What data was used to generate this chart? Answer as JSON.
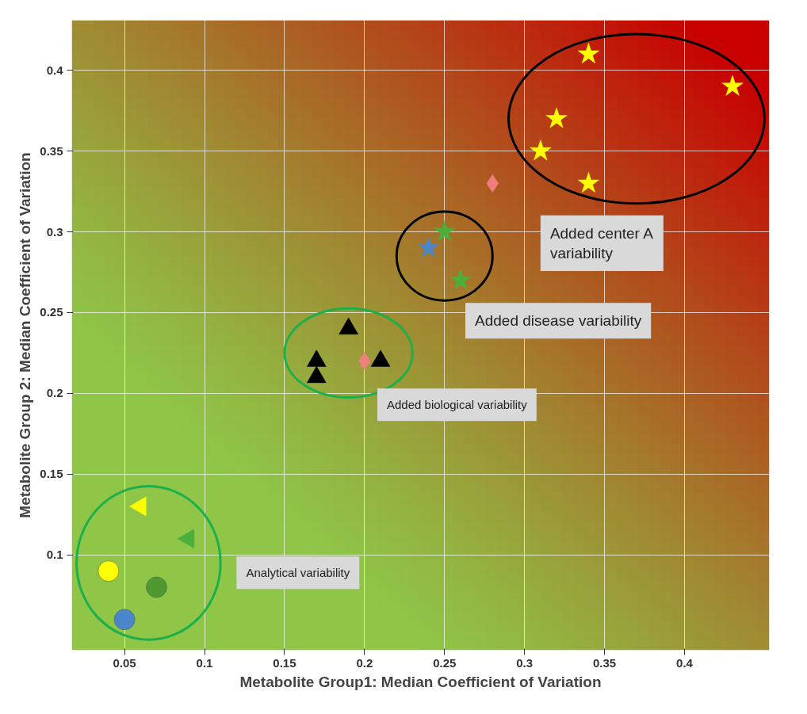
{
  "chart_data": {
    "type": "scatter",
    "xlabel": "Metabolite Group1: Median Coefficient of Variation",
    "ylabel": "Metabolite Group 2: Median Coefficient of Variation",
    "xlim": [
      0.017,
      0.453
    ],
    "ylim": [
      0.041,
      0.431
    ],
    "xticks": [
      0.05,
      0.1,
      0.15,
      0.2,
      0.25,
      0.3,
      0.35,
      0.4
    ],
    "yticks": [
      0.1,
      0.15,
      0.2,
      0.25,
      0.3,
      0.35,
      0.4
    ],
    "grid": true,
    "series": [
      {
        "color": "#ffff00",
        "marker": "star",
        "x": [
          0.34,
          0.43,
          0.32,
          0.31,
          0.34
        ],
        "values": [
          0.41,
          0.39,
          0.37,
          0.35,
          0.33
        ]
      },
      {
        "color": "#f08080",
        "marker": "diamond",
        "x": [
          0.28,
          0.2
        ],
        "values": [
          0.33,
          0.22
        ]
      },
      {
        "color": "#4caf3a",
        "marker": "star",
        "x": [
          0.25,
          0.26
        ],
        "values": [
          0.3,
          0.27
        ]
      },
      {
        "color": "#4a86c8",
        "marker": "star",
        "x": [
          0.24
        ],
        "values": [
          0.29
        ]
      },
      {
        "color": "#000000",
        "marker": "triangle",
        "x": [
          0.19,
          0.17,
          0.17,
          0.21
        ],
        "values": [
          0.24,
          0.22,
          0.21,
          0.22
        ]
      },
      {
        "color": "#ffff00",
        "marker": "triangle-left",
        "x": [
          0.06
        ],
        "values": [
          0.13
        ]
      },
      {
        "color": "#4caf3a",
        "marker": "triangle-left",
        "x": [
          0.09
        ],
        "values": [
          0.11
        ]
      },
      {
        "color": "#ffff00",
        "marker": "circle",
        "x": [
          0.04
        ],
        "values": [
          0.09
        ]
      },
      {
        "color": "#4e9a2e",
        "marker": "circle",
        "x": [
          0.07
        ],
        "values": [
          0.08
        ]
      },
      {
        "color": "#4a86c8",
        "marker": "circle",
        "x": [
          0.05
        ],
        "values": [
          0.06
        ]
      }
    ],
    "annotations": [
      "Added center A\nvariability",
      "Added disease variability",
      "Added biological variability",
      "Analytical variability"
    ]
  }
}
